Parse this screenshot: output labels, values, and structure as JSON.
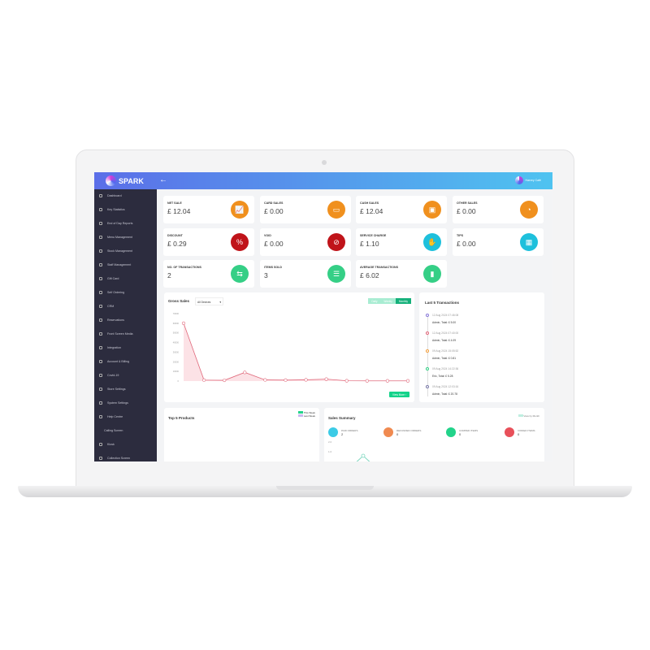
{
  "app": {
    "logo": "SPARK",
    "user": "Harvey Café"
  },
  "sidebar": {
    "items": [
      "Dashboard",
      "Key Statistics",
      "End of Day Reports",
      "Menu Management",
      "Stock Management",
      "Staff Management",
      "Gift Card",
      "Self Ordering",
      "CRM",
      "Reservations",
      "Front Screen Media",
      "Integration",
      "Account & Billing",
      "Covid-19",
      "Store Settings",
      "System Settings",
      "Help Centre",
      "Calling Screen",
      "Kiosk",
      "Collection Screen"
    ]
  },
  "cards": [
    {
      "label": "NET SALE",
      "value": "£ 12.04",
      "icon": "chart-icon",
      "color": "#f0901e"
    },
    {
      "label": "CARD SALES",
      "value": "£ 0.00",
      "icon": "card-icon",
      "color": "#f0901e"
    },
    {
      "label": "CASH SALES",
      "value": "£ 12.04",
      "icon": "cash-icon",
      "color": "#f0901e"
    },
    {
      "label": "OTHER SALES",
      "value": "£ 0.00",
      "icon": "pie-icon",
      "color": "#f0901e"
    },
    {
      "label": "DISCOUNT",
      "value": "£ 0.29",
      "icon": "discount-icon",
      "color": "#c0141a"
    },
    {
      "label": "VOID",
      "value": "£ 0.00",
      "icon": "ban-icon",
      "color": "#c0141a"
    },
    {
      "label": "SERVICE CHARGE",
      "value": "£ 1.10",
      "icon": "service-icon",
      "color": "#1ec0dc"
    },
    {
      "label": "TIPS",
      "value": "£ 0.00",
      "icon": "register-icon",
      "color": "#1ec0dc"
    },
    {
      "label": "NO. OF TRANSACTIONS",
      "value": "2",
      "icon": "transfer-icon",
      "color": "#35cf86"
    },
    {
      "label": "ITEMS SOLD",
      "value": "3",
      "icon": "checklist-icon",
      "color": "#35cf86"
    },
    {
      "label": "AVERAGE TRANSACTIONS",
      "value": "£ 6.02",
      "icon": "bar-chart-icon",
      "color": "#35cf86"
    }
  ],
  "gross_sales": {
    "title": "Gross Sales",
    "device_select": "All Devices",
    "tabs": [
      "Daily",
      "Weekly",
      "Monthly"
    ],
    "active_tab": "Monthly",
    "view_more": "View More ›"
  },
  "chart_data": {
    "type": "area",
    "yticks": [
      0,
      10000,
      20000,
      30000,
      40000,
      50000,
      60000,
      70000
    ],
    "ylim": [
      0,
      70000
    ],
    "values": [
      60000,
      1000,
      800,
      9000,
      1200,
      1000,
      1300,
      2000,
      300,
      200,
      200,
      200
    ],
    "color": "#e06a7c",
    "fill": "#fbd6dc"
  },
  "transactions": {
    "title": "Last 5 Transactions",
    "items": [
      {
        "date": "12 Aug 2024 07:46:08",
        "text": "Admin, Total: £ 5.00",
        "color": "#8a7ad8"
      },
      {
        "date": "12 Aug 2024 07:40:00",
        "text": "Admin, Total: £ 4.09",
        "color": "#e06a7c"
      },
      {
        "date": "09 Aug 2024 15:05:52",
        "text": "Admin, Total: £ 0.81",
        "color": "#f0a040"
      },
      {
        "date": "09 Aug 2024 14:22:36",
        "text": "Eric, Total: £ 5.28",
        "color": "#35cf86"
      },
      {
        "date": "09 Aug 2024 12:03:16",
        "text": "Admin, Total: £ 20.78",
        "color": "#7a7aa8"
      }
    ]
  },
  "top_products": {
    "title": "Top 5 Products",
    "legend": [
      "This Week",
      "Last Week"
    ]
  },
  "sales_summary": {
    "title": "Sales Summary",
    "toggle": "View by Month",
    "stats": [
      {
        "label": "PAID ORDERS",
        "value": "2",
        "color": "#3ccbe6"
      },
      {
        "label": "REFUNDED ORDERS",
        "value": "0",
        "color": "#f08a50"
      },
      {
        "label": "COMPED ITEMS",
        "value": "0",
        "color": "#22d38a"
      },
      {
        "label": "VOIDED ITEMS",
        "value": "0",
        "color": "#e8505a"
      }
    ],
    "yticks": [
      "2.0",
      "1.0"
    ]
  }
}
